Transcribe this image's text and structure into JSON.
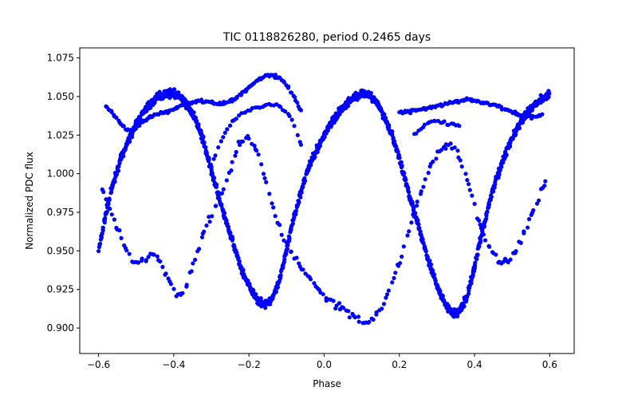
{
  "chart_data": {
    "type": "scatter",
    "title": "TIC 0118826280, period 0.2465 days",
    "xlabel": "Phase",
    "ylabel": "Normalized PDC flux",
    "xlim": [
      -0.65,
      0.665
    ],
    "ylim": [
      0.8835,
      1.0815
    ],
    "xticks": [
      -0.6,
      -0.4,
      -0.2,
      0.0,
      0.2,
      0.4,
      0.6
    ],
    "xtick_labels": [
      "−0.6",
      "−0.4",
      "−0.2",
      "0.0",
      "0.2",
      "0.4",
      "0.6"
    ],
    "yticks": [
      0.9,
      0.925,
      0.95,
      0.975,
      1.0,
      1.025,
      1.05,
      1.075
    ],
    "ytick_labels": [
      "0.900",
      "0.925",
      "0.950",
      "0.975",
      "1.000",
      "1.025",
      "1.050",
      "1.075"
    ],
    "grid": false,
    "marker_color": "#0000ff",
    "series": [
      {
        "name": "",
        "main_curve": {
          "x": [
            -0.6,
            -0.58,
            -0.56,
            -0.54,
            -0.52,
            -0.5,
            -0.48,
            -0.46,
            -0.44,
            -0.42,
            -0.4,
            -0.38,
            -0.36,
            -0.34,
            -0.32,
            -0.3,
            -0.28,
            -0.26,
            -0.24,
            -0.22,
            -0.2,
            -0.18,
            -0.16,
            -0.15,
            -0.14,
            -0.12,
            -0.1,
            -0.08,
            -0.06,
            -0.04,
            -0.02,
            0.0,
            0.02,
            0.04,
            0.06,
            0.08,
            0.1,
            0.12,
            0.14,
            0.16,
            0.18,
            0.2,
            0.22,
            0.24,
            0.26,
            0.28,
            0.3,
            0.32,
            0.34,
            0.35,
            0.36,
            0.38,
            0.4,
            0.42,
            0.44,
            0.46,
            0.48,
            0.5,
            0.52,
            0.54,
            0.56,
            0.58,
            0.6
          ],
          "y": [
            0.95,
            0.975,
            0.995,
            1.01,
            1.022,
            1.032,
            1.04,
            1.046,
            1.05,
            1.052,
            1.052,
            1.049,
            1.043,
            1.034,
            1.02,
            1.002,
            0.985,
            0.968,
            0.953,
            0.938,
            0.927,
            0.919,
            0.915,
            0.916,
            0.919,
            0.93,
            0.95,
            0.972,
            0.99,
            1.005,
            1.015,
            1.025,
            1.033,
            1.04,
            1.046,
            1.05,
            1.052,
            1.051,
            1.046,
            1.037,
            1.025,
            1.01,
            0.992,
            0.975,
            0.958,
            0.942,
            0.927,
            0.916,
            0.91,
            0.909,
            0.911,
            0.92,
            0.94,
            0.962,
            0.982,
            0.998,
            1.012,
            1.023,
            1.032,
            1.039,
            1.045,
            1.049,
            1.052
          ]
        },
        "upper_arc": {
          "x": [
            -0.58,
            -0.56,
            -0.54,
            -0.52,
            -0.5,
            -0.48,
            -0.46,
            -0.44,
            -0.42,
            -0.4,
            -0.38,
            -0.36,
            -0.34,
            -0.32,
            -0.3,
            -0.28,
            -0.26,
            -0.24,
            -0.22,
            -0.2,
            -0.18,
            -0.16,
            -0.14,
            -0.12,
            -0.1,
            -0.08,
            -0.06,
            0.2,
            0.22,
            0.24,
            0.26,
            0.28,
            0.3,
            0.32,
            0.34,
            0.36,
            0.38,
            0.4,
            0.42,
            0.44,
            0.46,
            0.48,
            0.5,
            0.52,
            0.54,
            0.56,
            0.58
          ],
          "y": [
            1.044,
            1.038,
            1.032,
            1.028,
            1.03,
            1.034,
            1.037,
            1.039,
            1.04,
            1.042,
            1.044,
            1.046,
            1.047,
            1.047,
            1.046,
            1.045,
            1.046,
            1.048,
            1.052,
            1.056,
            1.06,
            1.063,
            1.064,
            1.062,
            1.058,
            1.05,
            1.04,
            1.04,
            1.04,
            1.041,
            1.042,
            1.043,
            1.044,
            1.045,
            1.046,
            1.047,
            1.048,
            1.047,
            1.046,
            1.045,
            1.044,
            1.042,
            1.04,
            1.038,
            1.037,
            1.037,
            1.038
          ]
        },
        "inner_arc": {
          "x": [
            -0.3,
            -0.28,
            -0.26,
            -0.24,
            -0.22,
            -0.2,
            -0.18,
            -0.16,
            -0.14,
            -0.12,
            -0.1,
            -0.08,
            -0.06,
            0.24,
            0.26,
            0.28,
            0.3,
            0.32,
            0.34,
            0.36
          ],
          "y": [
            1.005,
            1.018,
            1.028,
            1.035,
            1.039,
            1.041,
            1.043,
            1.044,
            1.045,
            1.044,
            1.04,
            1.032,
            1.018,
            1.025,
            1.03,
            1.034,
            1.034,
            1.033,
            1.032,
            1.03
          ]
        },
        "lower_arc": {
          "x": [
            -0.59,
            -0.57,
            -0.55,
            -0.53,
            -0.51,
            -0.49,
            -0.47,
            -0.45,
            -0.43,
            -0.41,
            -0.39,
            -0.37,
            -0.35,
            -0.33,
            -0.31,
            -0.29,
            -0.27,
            -0.25,
            -0.23,
            -0.21,
            -0.19,
            -0.17,
            -0.15,
            -0.13,
            -0.11,
            -0.09,
            -0.07,
            -0.05,
            -0.03,
            -0.01,
            0.01,
            0.03,
            0.05,
            0.07,
            0.09,
            0.11,
            0.13,
            0.15,
            0.17,
            0.19,
            0.21,
            0.23,
            0.25,
            0.27,
            0.29,
            0.31,
            0.33,
            0.35,
            0.37,
            0.39,
            0.41,
            0.43,
            0.45,
            0.47,
            0.49,
            0.51,
            0.53,
            0.55,
            0.57,
            0.59
          ],
          "y": [
            0.99,
            0.978,
            0.965,
            0.952,
            0.944,
            0.943,
            0.945,
            0.948,
            0.94,
            0.93,
            0.92,
            0.925,
            0.94,
            0.955,
            0.968,
            0.978,
            0.988,
            1.003,
            1.018,
            1.024,
            1.02,
            1.008,
            0.99,
            0.973,
            0.96,
            0.95,
            0.942,
            0.936,
            0.93,
            0.924,
            0.918,
            0.915,
            0.913,
            0.908,
            0.905,
            0.902,
            0.905,
            0.912,
            0.922,
            0.935,
            0.95,
            0.968,
            0.982,
            0.996,
            1.008,
            1.016,
            1.018,
            1.016,
            1.005,
            0.988,
            0.97,
            0.958,
            0.948,
            0.942,
            0.944,
            0.95,
            0.96,
            0.972,
            0.985,
            0.995
          ]
        }
      }
    ]
  }
}
